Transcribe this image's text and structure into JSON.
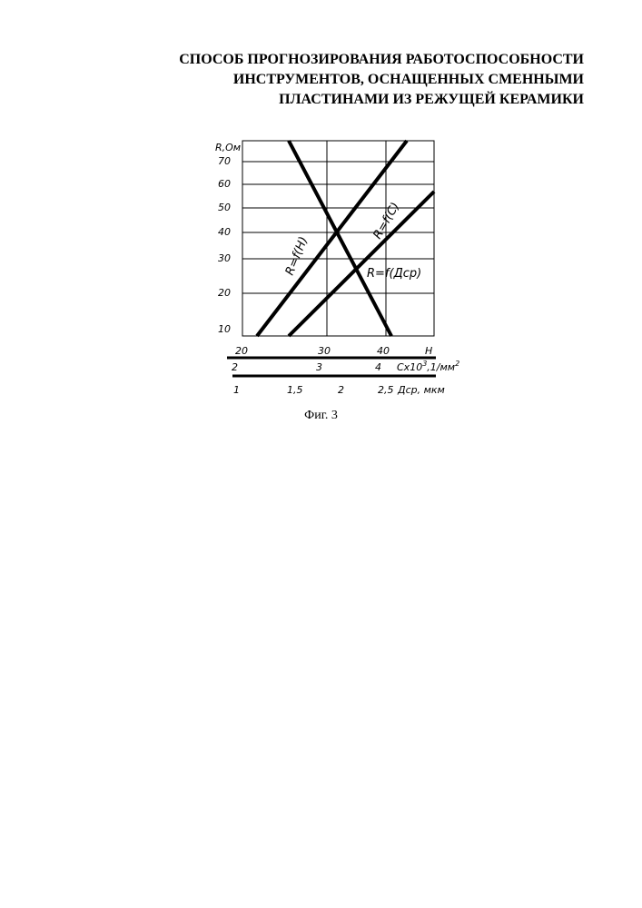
{
  "title_lines": [
    "СПОСОБ ПРОГНОЗИРОВАНИЯ РАБОТОСПОСОБНОСТИ",
    "ИНСТРУМЕНТОВ, ОСНАЩЕННЫХ СМЕННЫМИ",
    "ПЛАСТИНАМИ ИЗ РЕЖУЩЕЙ КЕРАМИКИ"
  ],
  "caption": "Фиг. 3",
  "chart_data": {
    "type": "line",
    "ylabel": "R,Ом",
    "y_ticks": [
      "10",
      "20",
      "30",
      "40",
      "50",
      "60",
      "70"
    ],
    "x_axes": [
      {
        "ticks": [
          "20",
          "30",
          "40"
        ],
        "label": "H"
      },
      {
        "ticks": [
          "2",
          "3",
          "4"
        ],
        "label": "Cx10",
        "label_sup": "3",
        "label_tail": ",1/мм",
        "label_tail_sup": "2"
      },
      {
        "ticks": [
          "1",
          "1,5",
          "2",
          "2,5"
        ],
        "label": "Дср, мкм"
      }
    ],
    "series": [
      {
        "name": "R=f(H)",
        "x_axis": "H",
        "points": [
          [
            40.7,
            10
          ],
          [
            25.3,
            80
          ]
        ]
      },
      {
        "name": "R=f(C)",
        "x_axis": "C",
        "points": [
          [
            2.27,
            10
          ],
          [
            4.45,
            80
          ]
        ]
      },
      {
        "name": "R=f(Дср)",
        "x_axis": "Дср",
        "points": [
          [
            1.3,
            10
          ],
          [
            3.6,
            57
          ]
        ]
      }
    ],
    "grid": true
  }
}
